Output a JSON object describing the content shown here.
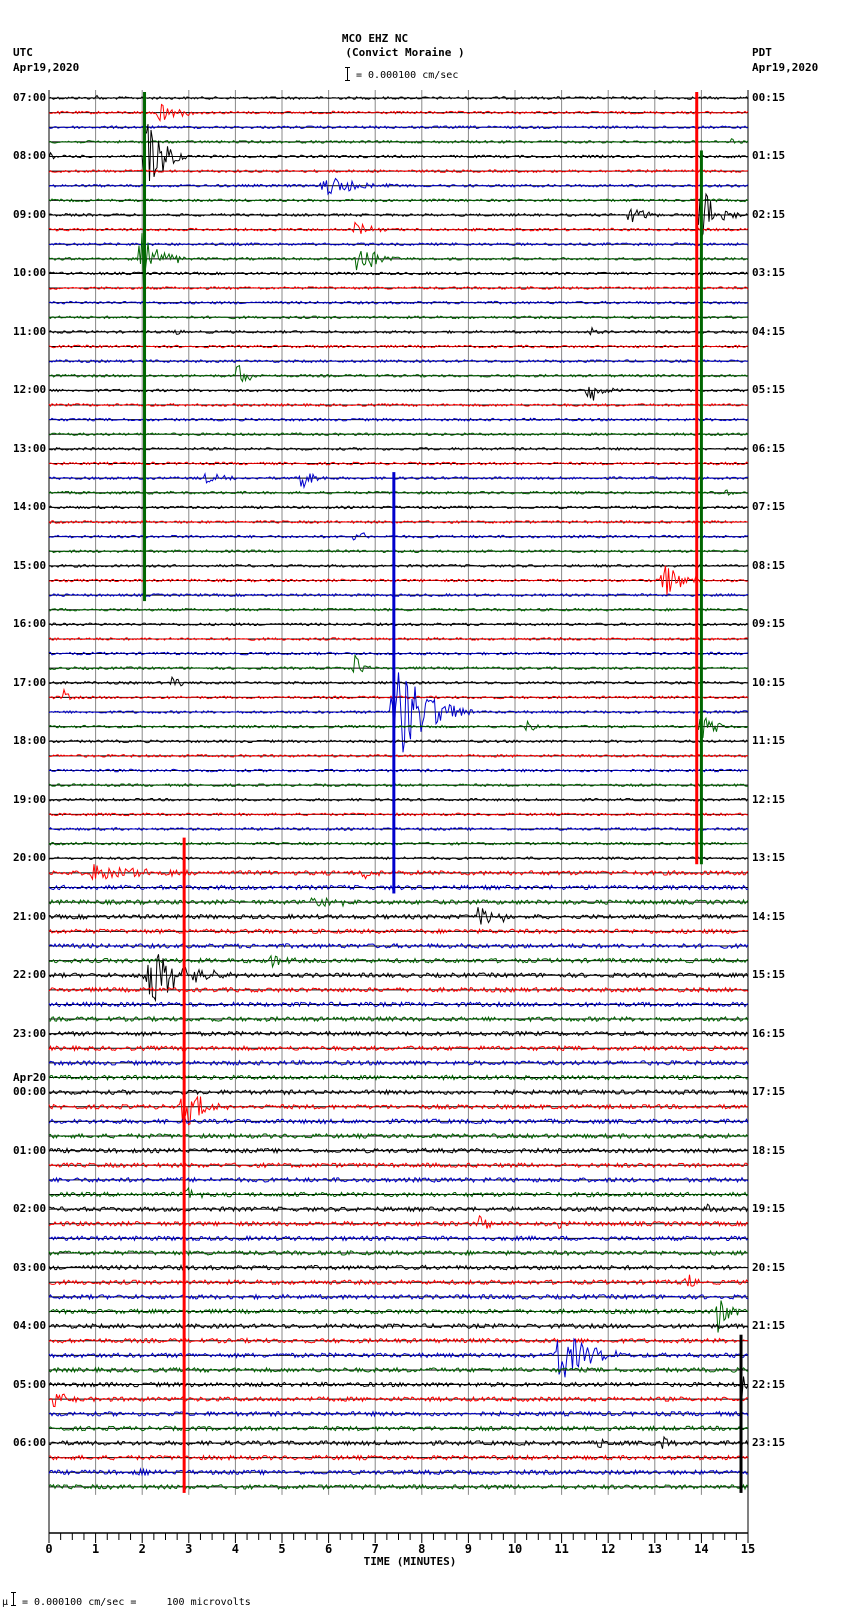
{
  "header": {
    "station": "MCO EHZ NC",
    "location": "(Convict Moraine )",
    "scale_text": "= 0.000100 cm/sec",
    "left_tz": "UTC",
    "left_date": "Apr19,2020",
    "right_tz": "PDT",
    "right_date": "Apr19,2020"
  },
  "footer": {
    "scale_prefix": "μ",
    "scale_text": "= 0.000100 cm/sec =     100 microvolts"
  },
  "colors": {
    "trace_cycle": [
      "#000000",
      "#ff0000",
      "#0000cc",
      "#006600"
    ],
    "grid": "#888888",
    "baseline": "#000000"
  },
  "chart_data": {
    "type": "line",
    "title": "MCO EHZ NC (Convict Moraine )",
    "subtitle": "= 0.000100 cm/sec",
    "xlabel": "TIME (MINUTES)",
    "ylabel": "",
    "xlim": [
      0,
      15
    ],
    "x_ticks": [
      "0",
      "1",
      "2",
      "3",
      "4",
      "5",
      "6",
      "7",
      "8",
      "9",
      "10",
      "11",
      "12",
      "13",
      "14",
      "15"
    ],
    "trace_minutes": 15,
    "trace_count": 96,
    "grid": true,
    "left_labels": [
      {
        "row": 0,
        "text": "07:00"
      },
      {
        "row": 4,
        "text": "08:00"
      },
      {
        "row": 8,
        "text": "09:00"
      },
      {
        "row": 12,
        "text": "10:00"
      },
      {
        "row": 16,
        "text": "11:00"
      },
      {
        "row": 20,
        "text": "12:00"
      },
      {
        "row": 24,
        "text": "13:00"
      },
      {
        "row": 28,
        "text": "14:00"
      },
      {
        "row": 32,
        "text": "15:00"
      },
      {
        "row": 36,
        "text": "16:00"
      },
      {
        "row": 40,
        "text": "17:00"
      },
      {
        "row": 44,
        "text": "18:00"
      },
      {
        "row": 48,
        "text": "19:00"
      },
      {
        "row": 52,
        "text": "20:00"
      },
      {
        "row": 56,
        "text": "21:00"
      },
      {
        "row": 60,
        "text": "22:00"
      },
      {
        "row": 64,
        "text": "23:00"
      },
      {
        "row": 68,
        "text": "00:00",
        "date": "Apr20"
      },
      {
        "row": 72,
        "text": "01:00"
      },
      {
        "row": 76,
        "text": "02:00"
      },
      {
        "row": 80,
        "text": "03:00"
      },
      {
        "row": 84,
        "text": "04:00"
      },
      {
        "row": 88,
        "text": "05:00"
      },
      {
        "row": 92,
        "text": "06:00"
      }
    ],
    "right_labels": [
      {
        "row": 0,
        "text": "00:15"
      },
      {
        "row": 4,
        "text": "01:15"
      },
      {
        "row": 8,
        "text": "02:15"
      },
      {
        "row": 12,
        "text": "03:15"
      },
      {
        "row": 16,
        "text": "04:15"
      },
      {
        "row": 20,
        "text": "05:15"
      },
      {
        "row": 24,
        "text": "06:15"
      },
      {
        "row": 28,
        "text": "07:15"
      },
      {
        "row": 32,
        "text": "08:15"
      },
      {
        "row": 36,
        "text": "09:15"
      },
      {
        "row": 40,
        "text": "10:15"
      },
      {
        "row": 44,
        "text": "11:15"
      },
      {
        "row": 48,
        "text": "12:15"
      },
      {
        "row": 52,
        "text": "13:15"
      },
      {
        "row": 56,
        "text": "14:15"
      },
      {
        "row": 60,
        "text": "15:15"
      },
      {
        "row": 64,
        "text": "16:15"
      },
      {
        "row": 68,
        "text": "17:15"
      },
      {
        "row": 72,
        "text": "18:15"
      },
      {
        "row": 76,
        "text": "19:15"
      },
      {
        "row": 80,
        "text": "20:15"
      },
      {
        "row": 84,
        "text": "21:15"
      },
      {
        "row": 88,
        "text": "22:15"
      },
      {
        "row": 92,
        "text": "23:15"
      }
    ],
    "events": [
      {
        "row": 0,
        "minute": 1.0,
        "amp": 6,
        "dur": 0.4
      },
      {
        "row": 1,
        "minute": 2.3,
        "amp": 16,
        "dur": 1.0
      },
      {
        "row": 3,
        "minute": 14.6,
        "amp": 8,
        "dur": 0.4
      },
      {
        "row": 4,
        "minute": 0.0,
        "amp": 6,
        "dur": 0.5
      },
      {
        "row": 4,
        "minute": 2.0,
        "amp": 60,
        "dur": 1.0,
        "spike": true
      },
      {
        "row": 6,
        "minute": 5.8,
        "amp": 14,
        "dur": 2.0
      },
      {
        "row": 8,
        "minute": 12.4,
        "amp": 14,
        "dur": 0.8
      },
      {
        "row": 8,
        "minute": 13.9,
        "amp": 40,
        "dur": 1.0
      },
      {
        "row": 9,
        "minute": 6.5,
        "amp": 10,
        "dur": 0.8
      },
      {
        "row": 11,
        "minute": 1.9,
        "amp": 40,
        "dur": 1.0
      },
      {
        "row": 11,
        "minute": 6.5,
        "amp": 28,
        "dur": 1.0
      },
      {
        "row": 16,
        "minute": 2.7,
        "amp": 6,
        "dur": 0.3
      },
      {
        "row": 16,
        "minute": 11.6,
        "amp": 6,
        "dur": 0.4
      },
      {
        "row": 19,
        "minute": 4.0,
        "amp": 18,
        "dur": 0.6
      },
      {
        "row": 20,
        "minute": 11.5,
        "amp": 20,
        "dur": 0.8
      },
      {
        "row": 26,
        "minute": 3.3,
        "amp": 8,
        "dur": 0.8
      },
      {
        "row": 26,
        "minute": 5.3,
        "amp": 20,
        "dur": 0.7
      },
      {
        "row": 27,
        "minute": 14.5,
        "amp": 5,
        "dur": 0.5
      },
      {
        "row": 30,
        "minute": 6.5,
        "amp": 12,
        "dur": 0.6
      },
      {
        "row": 33,
        "minute": 13.1,
        "amp": 28,
        "dur": 1.0
      },
      {
        "row": 39,
        "minute": 6.5,
        "amp": 20,
        "dur": 0.5
      },
      {
        "row": 40,
        "minute": 2.6,
        "amp": 10,
        "dur": 0.6
      },
      {
        "row": 41,
        "minute": 0.3,
        "amp": 10,
        "dur": 0.3
      },
      {
        "row": 42,
        "minute": 7.3,
        "amp": 70,
        "dur": 1.8
      },
      {
        "row": 43,
        "minute": 10.2,
        "amp": 8,
        "dur": 0.5
      },
      {
        "row": 43,
        "minute": 13.9,
        "amp": 20,
        "dur": 0.8
      },
      {
        "row": 53,
        "minute": 0.8,
        "amp": 14,
        "dur": 2.5
      },
      {
        "row": 53,
        "minute": 6.7,
        "amp": 12,
        "dur": 0.5
      },
      {
        "row": 55,
        "minute": 5.5,
        "amp": 8,
        "dur": 2.0
      },
      {
        "row": 56,
        "minute": 9.1,
        "amp": 14,
        "dur": 1.5
      },
      {
        "row": 59,
        "minute": 4.7,
        "amp": 16,
        "dur": 0.6
      },
      {
        "row": 60,
        "minute": 2.0,
        "amp": 40,
        "dur": 2.0
      },
      {
        "row": 69,
        "minute": 2.8,
        "amp": 30,
        "dur": 1.2
      },
      {
        "row": 75,
        "minute": 2.9,
        "amp": 12,
        "dur": 0.5
      },
      {
        "row": 76,
        "minute": 14.1,
        "amp": 10,
        "dur": 0.4
      },
      {
        "row": 77,
        "minute": 9.2,
        "amp": 14,
        "dur": 0.6
      },
      {
        "row": 77,
        "minute": 10.9,
        "amp": 10,
        "dur": 0.3
      },
      {
        "row": 81,
        "minute": 13.6,
        "amp": 14,
        "dur": 0.6
      },
      {
        "row": 83,
        "minute": 14.3,
        "amp": 28,
        "dur": 0.6
      },
      {
        "row": 86,
        "minute": 10.8,
        "amp": 40,
        "dur": 1.5
      },
      {
        "row": 88,
        "minute": 14.85,
        "amp": 30,
        "dur": 0.15
      },
      {
        "row": 89,
        "minute": 0.0,
        "amp": 18,
        "dur": 0.6
      },
      {
        "row": 92,
        "minute": 11.7,
        "amp": 10,
        "dur": 0.5
      },
      {
        "row": 92,
        "minute": 13.1,
        "amp": 14,
        "dur": 0.4
      },
      {
        "row": 94,
        "minute": 1.9,
        "amp": 6,
        "dur": 0.3
      }
    ],
    "long_spikes": [
      {
        "minute": 2.05,
        "row_from": 0,
        "row_to": 34,
        "color": "#006600"
      },
      {
        "minute": 13.9,
        "row_from": 0,
        "row_to": 52,
        "color": "#ff0000"
      },
      {
        "minute": 14.0,
        "row_from": 4,
        "row_to": 52,
        "color": "#006600"
      },
      {
        "minute": 7.4,
        "row_from": 26,
        "row_to": 54,
        "color": "#0000cc"
      },
      {
        "minute": 2.9,
        "row_from": 51,
        "row_to": 95,
        "color": "#ff0000"
      },
      {
        "minute": 14.85,
        "row_from": 85,
        "row_to": 95,
        "color": "#000000"
      }
    ]
  }
}
